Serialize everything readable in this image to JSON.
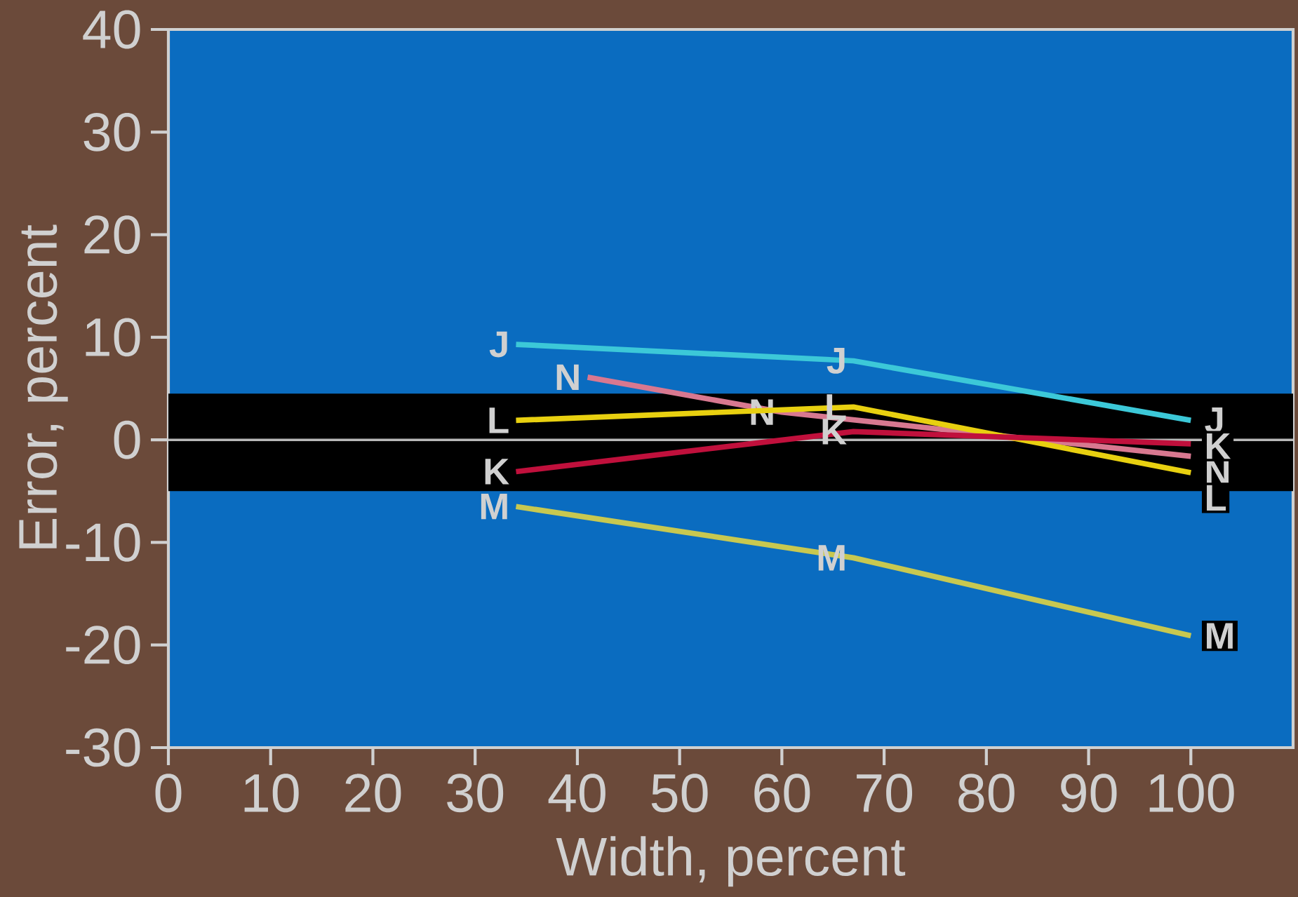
{
  "chart_data": {
    "type": "line",
    "xlabel": "Width, percent",
    "ylabel": "Error, percent",
    "xlim": [
      0,
      110
    ],
    "ylim": [
      -30,
      40
    ],
    "xticks": [
      0,
      10,
      20,
      30,
      40,
      50,
      60,
      70,
      80,
      90,
      100
    ],
    "yticks": [
      -30,
      -20,
      -10,
      0,
      10,
      20,
      30,
      40
    ],
    "grid": false,
    "marker": "none",
    "line_style": "solid",
    "bands": [
      {
        "axis": "y",
        "from": -5,
        "to": 4.5,
        "color": "#000000"
      }
    ],
    "ref_lines": [
      {
        "axis": "y",
        "value": 0,
        "color": "#b8b8b8"
      }
    ],
    "series": [
      {
        "name": "J",
        "color": "#3cc8d8",
        "x": [
          34,
          67,
          100
        ],
        "values": [
          9.3,
          7.7,
          1.9
        ]
      },
      {
        "name": "N",
        "color": "#d87890",
        "x": [
          41,
          60,
          100
        ],
        "values": [
          6.1,
          2.7,
          -1.6
        ]
      },
      {
        "name": "L",
        "color": "#e8d010",
        "x": [
          34,
          67,
          100
        ],
        "values": [
          1.9,
          3.2,
          -3.2
        ]
      },
      {
        "name": "K",
        "color": "#c0103c",
        "x": [
          34,
          67,
          100
        ],
        "values": [
          -3.1,
          0.8,
          -0.4
        ]
      },
      {
        "name": "M",
        "color": "#c8c850",
        "x": [
          34,
          67,
          100
        ],
        "values": [
          -6.5,
          -11.5,
          -19.1
        ]
      }
    ]
  }
}
